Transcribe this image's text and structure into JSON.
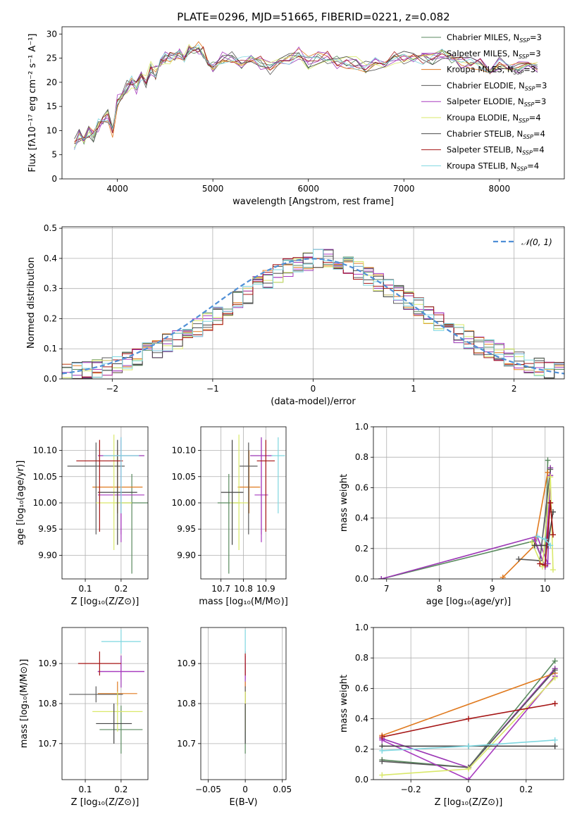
{
  "figure_title": "PLATE=0296, MJD=51665, FIBERID=0221, z=0.082",
  "colors": [
    "#5a8a5f",
    "#9b36b5",
    "#e07a1f",
    "#5a5a5a",
    "#a83bbf",
    "#d9e86a",
    "#444444",
    "#a51515",
    "#7fd7e0"
  ],
  "chart_data": [
    {
      "id": "spectrum",
      "type": "line",
      "title": "PLATE=0296, MJD=51665, FIBERID=0221, z=0.082",
      "xlabel": "wavelength [Angstrom, rest frame]",
      "ylabel": "Flux [fλ10⁻¹⁷ erg cm⁻² s⁻¹ A⁻¹]",
      "xlim": [
        3420,
        8680
      ],
      "ylim": [
        0,
        31.5
      ],
      "xticks": [
        4000,
        5000,
        6000,
        7000,
        8000
      ],
      "yticks": [
        0,
        5,
        10,
        15,
        20,
        25,
        30
      ],
      "grid": false,
      "legend": "upper right",
      "x": [
        3550,
        3600,
        3650,
        3700,
        3750,
        3800,
        3850,
        3900,
        3950,
        4000,
        4050,
        4100,
        4150,
        4200,
        4250,
        4300,
        4350,
        4400,
        4450,
        4500,
        4550,
        4600,
        4650,
        4700,
        4750,
        4800,
        4850,
        4900,
        4950,
        5000,
        5100,
        5200,
        5300,
        5400,
        5500,
        5600,
        5700,
        5800,
        5900,
        6000,
        6100,
        6200,
        6300,
        6400,
        6500,
        6600,
        6700,
        6800,
        6900,
        7000,
        7100,
        7200,
        7300,
        7400,
        7500,
        7600,
        7700,
        7800,
        7900,
        8000,
        8100,
        8200,
        8300,
        8400
      ],
      "y": [
        7,
        9,
        8,
        10,
        9,
        11,
        12,
        13,
        10,
        16,
        18,
        19,
        20,
        19,
        21,
        20,
        23,
        22,
        24,
        25,
        25,
        26,
        26,
        25,
        27,
        26,
        27,
        26,
        24,
        23,
        25,
        25,
        24,
        25,
        24,
        23,
        24,
        25,
        26,
        24,
        25,
        25,
        24,
        24,
        24,
        23,
        24,
        24,
        25,
        25,
        25,
        25,
        25,
        26,
        25,
        24,
        24,
        24,
        23,
        24,
        23,
        23,
        23,
        23
      ],
      "series": [
        {
          "name": "Chabrier MILES, N_SSP=3",
          "label_main": "Chabrier MILES, N",
          "label_sub": "SSP",
          "label_tail": "=3",
          "color": "#5a8a5f"
        },
        {
          "name": "Salpeter MILES, N_SSP=3",
          "label_main": "Salpeter MILES, N",
          "label_sub": "SSP",
          "label_tail": "=3",
          "color": "#9b36b5"
        },
        {
          "name": "Kroupa MILES, N_SSP=3",
          "label_main": "Kroupa MILES, N",
          "label_sub": "SSP",
          "label_tail": "=3",
          "color": "#e07a1f"
        },
        {
          "name": "Chabrier ELODIE, N_SSP=3",
          "label_main": "Chabrier ELODIE, N",
          "label_sub": "SSP",
          "label_tail": "=3",
          "color": "#5a5a5a"
        },
        {
          "name": "Salpeter ELODIE, N_SSP=3",
          "label_main": "Salpeter ELODIE, N",
          "label_sub": "SSP",
          "label_tail": "=3",
          "color": "#a83bbf"
        },
        {
          "name": "Kroupa ELODIE, N_SSP=4",
          "label_main": "Kroupa ELODIE, N",
          "label_sub": "SSP",
          "label_tail": "=4",
          "color": "#d9e86a"
        },
        {
          "name": "Chabrier STELIB, N_SSP=4",
          "label_main": "Chabrier STELIB, N",
          "label_sub": "SSP",
          "label_tail": "=4",
          "color": "#444444"
        },
        {
          "name": "Salpeter STELIB, N_SSP=4",
          "label_main": "Salpeter STELIB, N",
          "label_sub": "SSP",
          "label_tail": "=4",
          "color": "#a51515"
        },
        {
          "name": "Kroupa STELIB, N_SSP=4",
          "label_main": "Kroupa STELIB, N",
          "label_sub": "SSP",
          "label_tail": "=4",
          "color": "#7fd7e0"
        }
      ]
    },
    {
      "id": "residuals",
      "type": "line",
      "xlabel": "(data-model)/error",
      "ylabel": "Normed distribution",
      "xlim": [
        -2.5,
        2.5
      ],
      "ylim": [
        0,
        0.505
      ],
      "xticks": [
        -2,
        -1,
        0,
        1,
        2
      ],
      "yticks": [
        0.0,
        0.1,
        0.2,
        0.3,
        0.4,
        0.5
      ],
      "grid": true,
      "legend": "upper right",
      "normal_label": "𝒩(0, 1)",
      "bins": [
        -2.5,
        -2.4,
        -2.3,
        -2.2,
        -2.1,
        -2.0,
        -1.9,
        -1.8,
        -1.7,
        -1.6,
        -1.5,
        -1.4,
        -1.3,
        -1.2,
        -1.1,
        -1.0,
        -0.9,
        -0.8,
        -0.7,
        -0.6,
        -0.5,
        -0.4,
        -0.3,
        -0.2,
        -0.1,
        0.0,
        0.1,
        0.2,
        0.3,
        0.4,
        0.5,
        0.6,
        0.7,
        0.8,
        0.9,
        1.0,
        1.1,
        1.2,
        1.3,
        1.4,
        1.5,
        1.6,
        1.7,
        1.8,
        1.9,
        2.0,
        2.1,
        2.2,
        2.3,
        2.4
      ],
      "histogram": [
        0.02,
        0.025,
        0.03,
        0.035,
        0.04,
        0.05,
        0.06,
        0.07,
        0.09,
        0.1,
        0.12,
        0.13,
        0.15,
        0.17,
        0.19,
        0.21,
        0.24,
        0.26,
        0.28,
        0.31,
        0.33,
        0.35,
        0.37,
        0.38,
        0.39,
        0.4,
        0.4,
        0.39,
        0.38,
        0.36,
        0.34,
        0.32,
        0.3,
        0.28,
        0.26,
        0.24,
        0.21,
        0.19,
        0.17,
        0.15,
        0.13,
        0.11,
        0.1,
        0.09,
        0.07,
        0.06,
        0.05,
        0.04,
        0.03,
        0.025
      ]
    },
    {
      "id": "age-vs-z",
      "type": "scatter",
      "xlabel": "Z [log₁₀(Z/Z⊙)]",
      "ylabel": "age  [log₁₀(age/yr)]",
      "xlim": [
        0.035,
        0.275
      ],
      "ylim": [
        9.855,
        10.145
      ],
      "xticks": [
        0.1,
        0.2
      ],
      "yticks": [
        9.9,
        9.95,
        10.0,
        10.05,
        10.1
      ],
      "grid": true,
      "points": [
        {
          "x": 0.23,
          "y": 10.0,
          "xerr": 0.045,
          "yerr_lo": 0.135,
          "yerr_hi": 0.055
        },
        {
          "x": 0.2,
          "y": 10.09,
          "xerr": 0.065,
          "yerr_lo": 0.15,
          "yerr_hi": 0.035
        },
        {
          "x": 0.19,
          "y": 10.03,
          "xerr": 0.07,
          "yerr_lo": 0.05,
          "yerr_hi": 0.07
        },
        {
          "x": 0.13,
          "y": 10.07,
          "xerr": 0.08,
          "yerr_lo": 0.13,
          "yerr_hi": 0.045
        },
        {
          "x": 0.2,
          "y": 10.015,
          "xerr": 0.065,
          "yerr_lo": 0.09,
          "yerr_hi": 0.105
        },
        {
          "x": 0.18,
          "y": 10.0,
          "xerr": 0.05,
          "yerr_lo": 0.09,
          "yerr_hi": 0.13
        },
        {
          "x": 0.19,
          "y": 10.02,
          "xerr": 0.055,
          "yerr_lo": 0.1,
          "yerr_hi": 0.1
        },
        {
          "x": 0.14,
          "y": 10.08,
          "xerr": 0.065,
          "yerr_lo": 0.135,
          "yerr_hi": 0.04
        },
        {
          "x": 0.2,
          "y": 10.09,
          "xerr": 0.05,
          "yerr_lo": 0.11,
          "yerr_hi": 0.035
        }
      ]
    },
    {
      "id": "age-vs-mass",
      "type": "scatter",
      "xlabel": "mass [log₁₀(M/M⊙)]",
      "xlim": [
        10.61,
        10.99
      ],
      "ylim": [
        9.855,
        10.145
      ],
      "xticks": [
        10.7,
        10.8,
        10.9
      ],
      "yticks": [
        9.9,
        9.95,
        10.0,
        10.05,
        10.1
      ],
      "grid": true,
      "points": [
        {
          "x": 10.735,
          "y": 10.0,
          "xerr": 0.05,
          "yerr_lo": 0.135,
          "yerr_hi": 0.055
        },
        {
          "x": 10.88,
          "y": 10.09,
          "xerr": 0.05,
          "yerr_lo": 0.15,
          "yerr_hi": 0.035
        },
        {
          "x": 10.825,
          "y": 10.03,
          "xerr": 0.05,
          "yerr_lo": 0.05,
          "yerr_hi": 0.07
        },
        {
          "x": 10.823,
          "y": 10.07,
          "xerr": 0.04,
          "yerr_lo": 0.13,
          "yerr_hi": 0.045
        },
        {
          "x": 10.88,
          "y": 10.015,
          "xerr": 0.03,
          "yerr_lo": 0.09,
          "yerr_hi": 0.105
        },
        {
          "x": 10.78,
          "y": 10.0,
          "xerr": 0.04,
          "yerr_lo": 0.09,
          "yerr_hi": 0.13
        },
        {
          "x": 10.75,
          "y": 10.02,
          "xerr": 0.05,
          "yerr_lo": 0.1,
          "yerr_hi": 0.1
        },
        {
          "x": 10.9,
          "y": 10.08,
          "xerr": 0.04,
          "yerr_lo": 0.135,
          "yerr_hi": 0.04
        },
        {
          "x": 10.955,
          "y": 10.09,
          "xerr": 0.03,
          "yerr_lo": 0.11,
          "yerr_hi": 0.035
        }
      ]
    },
    {
      "id": "weight-vs-age",
      "type": "line",
      "xlabel": "age  [log₁₀(age/yr)]",
      "ylabel": "mass weight",
      "xlim": [
        6.75,
        10.35
      ],
      "ylim": [
        0,
        1.0
      ],
      "xticks": [
        7,
        8,
        9,
        10
      ],
      "yticks": [
        0.0,
        0.2,
        0.4,
        0.6,
        0.8,
        1.0
      ],
      "grid": true,
      "series": [
        {
          "x": [
            6.9,
            9.8,
            10.0,
            10.05
          ],
          "y": [
            0.0,
            0.25,
            0.08,
            0.78
          ]
        },
        {
          "x": [
            6.9,
            9.85,
            10.05,
            10.1
          ],
          "y": [
            0.0,
            0.28,
            0.1,
            0.73
          ]
        },
        {
          "x": [
            9.2,
            9.8,
            10.05
          ],
          "y": [
            0.01,
            0.22,
            0.7
          ]
        },
        {
          "x": [
            9.5,
            9.9,
            10.1
          ],
          "y": [
            0.13,
            0.12,
            0.72
          ]
        },
        {
          "x": [
            9.8,
            10.0,
            10.1
          ],
          "y": [
            0.26,
            0.08,
            0.68
          ]
        },
        {
          "x": [
            9.75,
            9.95,
            10.1,
            10.15
          ],
          "y": [
            0.24,
            0.08,
            0.67,
            0.06
          ]
        },
        {
          "x": [
            9.8,
            10.05,
            10.15
          ],
          "y": [
            0.22,
            0.22,
            0.44
          ]
        },
        {
          "x": [
            9.9,
            10.0,
            10.1,
            10.15
          ],
          "y": [
            0.1,
            0.09,
            0.5,
            0.29
          ]
        },
        {
          "x": [
            9.85,
            10.0,
            10.1
          ],
          "y": [
            0.28,
            0.26,
            0.22
          ]
        }
      ]
    },
    {
      "id": "mass-vs-z",
      "type": "scatter",
      "xlabel": "Z [log₁₀(Z/Z⊙)]",
      "ylabel": "mass [log₁₀(M/M⊙)]",
      "xlim": [
        0.035,
        0.275
      ],
      "ylim": [
        10.61,
        10.99
      ],
      "xticks": [
        0.1,
        0.2
      ],
      "yticks": [
        10.7,
        10.8,
        10.9
      ],
      "grid": true,
      "points": [
        {
          "x": 0.2,
          "y": 10.735,
          "xerr": 0.06,
          "yerr": 0.06
        },
        {
          "x": 0.2,
          "y": 10.88,
          "xerr": 0.065,
          "yerr": 0.04
        },
        {
          "x": 0.19,
          "y": 10.825,
          "xerr": 0.055,
          "yerr": 0.03
        },
        {
          "x": 0.13,
          "y": 10.823,
          "xerr": 0.075,
          "yerr": 0.02
        },
        {
          "x": 0.2,
          "y": 10.88,
          "xerr": 0.065,
          "yerr": 0.02
        },
        {
          "x": 0.19,
          "y": 10.78,
          "xerr": 0.07,
          "yerr": 0.05
        },
        {
          "x": 0.18,
          "y": 10.75,
          "xerr": 0.05,
          "yerr": 0.05
        },
        {
          "x": 0.14,
          "y": 10.9,
          "xerr": 0.06,
          "yerr": 0.03
        },
        {
          "x": 0.2,
          "y": 10.955,
          "xerr": 0.055,
          "yerr": 0.03
        }
      ]
    },
    {
      "id": "mass-vs-ebv",
      "type": "scatter",
      "xlabel": "E(B-V)",
      "xlim": [
        -0.06,
        0.055
      ],
      "ylim": [
        10.61,
        10.99
      ],
      "xticks": [
        -0.05,
        0.0,
        0.05
      ],
      "yticks": [
        10.7,
        10.8,
        10.9
      ],
      "grid": true,
      "points": [
        {
          "x": 0.0,
          "y": 10.735,
          "yerr": 0.06
        },
        {
          "x": 0.0,
          "y": 10.88,
          "yerr": 0.04
        },
        {
          "x": 0.0,
          "y": 10.825,
          "yerr": 0.03
        },
        {
          "x": 0.0,
          "y": 10.823,
          "yerr": 0.02
        },
        {
          "x": 0.0,
          "y": 10.88,
          "yerr": 0.02
        },
        {
          "x": 0.0,
          "y": 10.78,
          "yerr": 0.05
        },
        {
          "x": 0.0,
          "y": 10.75,
          "yerr": 0.05
        },
        {
          "x": 0.0,
          "y": 10.9,
          "yerr": 0.03
        },
        {
          "x": 0.0,
          "y": 10.955,
          "yerr": 0.03
        }
      ]
    },
    {
      "id": "weight-vs-z",
      "type": "line",
      "xlabel": "Z [log₁₀(Z/Z⊙)]",
      "ylabel": "mass weight",
      "xlim": [
        -0.33,
        0.33
      ],
      "ylim": [
        0,
        1.0
      ],
      "xticks": [
        -0.2,
        0.0,
        0.2
      ],
      "yticks": [
        0.0,
        0.2,
        0.4,
        0.6,
        0.8,
        1.0
      ],
      "grid": true,
      "series": [
        {
          "x": [
            -0.3,
            0.0,
            0.3
          ],
          "y": [
            0.13,
            0.08,
            0.78
          ]
        },
        {
          "x": [
            -0.3,
            0.0,
            0.3
          ],
          "y": [
            0.27,
            0.08,
            0.73
          ]
        },
        {
          "x": [
            -0.3,
            0.3
          ],
          "y": [
            0.29,
            0.7
          ]
        },
        {
          "x": [
            -0.3,
            0.0,
            0.3
          ],
          "y": [
            0.12,
            0.08,
            0.72
          ]
        },
        {
          "x": [
            -0.3,
            0.0,
            0.3
          ],
          "y": [
            0.26,
            0.0,
            0.68
          ]
        },
        {
          "x": [
            -0.3,
            0.0,
            0.3
          ],
          "y": [
            0.03,
            0.07,
            0.67
          ]
        },
        {
          "x": [
            -0.3,
            0.0,
            0.3
          ],
          "y": [
            0.22,
            0.22,
            0.22
          ]
        },
        {
          "x": [
            -0.3,
            0.0,
            0.3
          ],
          "y": [
            0.28,
            0.4,
            0.5
          ]
        },
        {
          "x": [
            -0.3,
            0.0,
            0.3
          ],
          "y": [
            0.19,
            0.22,
            0.26
          ]
        }
      ]
    }
  ]
}
